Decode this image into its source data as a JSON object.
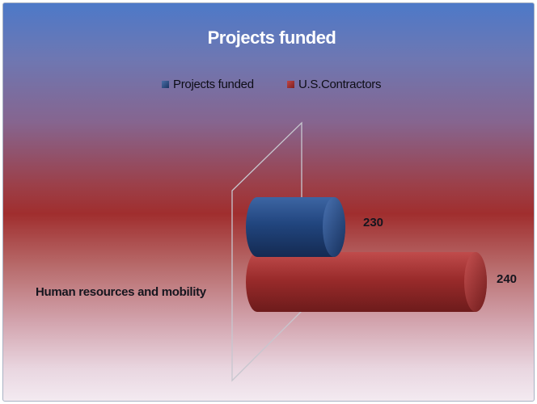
{
  "chart_data": {
    "type": "bar",
    "orientation": "horizontal",
    "style": "3d-cylinder",
    "title": "Projects funded",
    "categories": [
      "Human resources and mobility"
    ],
    "series": [
      {
        "name": "Projects funded",
        "values": [
          230
        ],
        "color": "#1f3d6e"
      },
      {
        "name": "U.S.Contractors",
        "values": [
          240
        ],
        "color": "#8c2525"
      }
    ],
    "data_labels": [
      "230",
      "240"
    ],
    "legend_position": "top",
    "grid": false
  }
}
